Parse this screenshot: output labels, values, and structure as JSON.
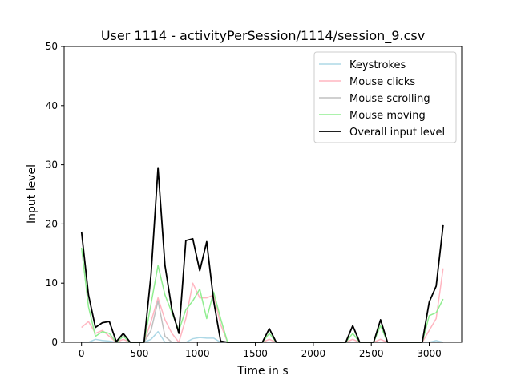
{
  "chart_data": {
    "type": "line",
    "title": "User 1114 - activityPerSession/1114/session_9.csv",
    "xlabel": "Time in s",
    "ylabel": "Input level",
    "xlim": [
      -150,
      3280
    ],
    "ylim": [
      0,
      50
    ],
    "x_ticks": [
      0,
      500,
      1000,
      1500,
      2000,
      2500,
      3000
    ],
    "y_ticks": [
      0,
      10,
      20,
      30,
      40,
      50
    ],
    "grid": false,
    "legend_position": "top-right",
    "x": [
      0,
      60,
      120,
      180,
      240,
      300,
      360,
      420,
      480,
      540,
      600,
      660,
      720,
      780,
      840,
      900,
      960,
      1020,
      1080,
      1140,
      1200,
      1260,
      1320,
      1380,
      1440,
      1500,
      1560,
      1620,
      1680,
      1740,
      1800,
      1860,
      1920,
      1980,
      2040,
      2100,
      2160,
      2220,
      2280,
      2340,
      2400,
      2460,
      2520,
      2580,
      2640,
      2700,
      2760,
      2820,
      2880,
      2940,
      3000,
      3060,
      3120
    ],
    "series": [
      {
        "name": "Keystrokes",
        "color": "#add8e6",
        "values": [
          0,
          0,
          0.5,
          0.3,
          0.2,
          0,
          0,
          0,
          0,
          0,
          0.5,
          1.8,
          0,
          0,
          0,
          0,
          0.6,
          0.8,
          0.7,
          0.7,
          0,
          0,
          0,
          0,
          0,
          0,
          0,
          0,
          0,
          0,
          0,
          0,
          0,
          0,
          0,
          0,
          0,
          0,
          0,
          0,
          0,
          0,
          0,
          0,
          0,
          0,
          0,
          0,
          0,
          0,
          0,
          0.3,
          0
        ]
      },
      {
        "name": "Mouse clicks",
        "color": "#ffb6c1",
        "values": [
          2.5,
          3.5,
          1.5,
          2,
          1,
          0,
          0.5,
          0,
          0,
          0,
          3.5,
          7.5,
          3.8,
          1.5,
          0,
          4,
          10,
          7.5,
          7.5,
          8,
          3,
          0,
          0,
          0,
          0,
          0,
          0,
          0.5,
          0,
          0,
          0,
          0,
          0,
          0,
          0,
          0,
          0,
          0,
          0,
          0.5,
          0,
          0,
          0,
          0.5,
          0,
          0,
          0,
          0,
          0,
          0,
          2,
          4,
          12.5
        ]
      },
      {
        "name": "Mouse scrolling",
        "color": "#c0c0c0",
        "values": [
          0,
          0,
          0,
          0,
          0,
          0,
          0,
          0,
          0,
          0,
          2,
          7,
          1,
          0,
          0,
          0,
          0,
          0,
          0,
          0,
          0,
          0,
          0,
          0,
          0,
          0,
          0,
          0,
          0,
          0,
          0,
          0,
          0,
          0,
          0,
          0,
          0,
          0,
          0,
          0,
          0,
          0,
          0,
          0,
          0,
          0,
          0,
          0,
          0,
          0,
          0,
          0,
          0
        ]
      },
      {
        "name": "Mouse moving",
        "color": "#90ee90",
        "values": [
          16,
          6,
          1,
          1.8,
          1.5,
          0,
          1,
          0,
          0,
          0,
          6.5,
          13,
          8,
          5,
          2,
          5.5,
          7,
          9,
          4,
          8.5,
          4,
          0,
          0,
          0,
          0,
          0,
          0,
          1.5,
          0,
          0,
          0,
          0,
          0,
          0,
          0,
          0,
          0,
          0,
          0,
          1.5,
          0,
          0,
          0,
          2.8,
          0,
          0,
          0,
          0,
          0,
          0,
          4.5,
          5,
          7.3
        ]
      },
      {
        "name": "Overall input level",
        "color": "#000000",
        "values": [
          18.7,
          8,
          2.5,
          3.3,
          3.5,
          0.1,
          1.5,
          0,
          0,
          0,
          11.5,
          29.5,
          13,
          5.5,
          1.5,
          17.2,
          17.5,
          12.1,
          17,
          7,
          0.2,
          0,
          0,
          0,
          0,
          0,
          0,
          2.3,
          0,
          0,
          0,
          0,
          0,
          0,
          0,
          0,
          0,
          0,
          0,
          2.8,
          0,
          0,
          0,
          3.8,
          0,
          0,
          0,
          0,
          0,
          0,
          6.8,
          9.5,
          19.8
        ]
      }
    ]
  }
}
